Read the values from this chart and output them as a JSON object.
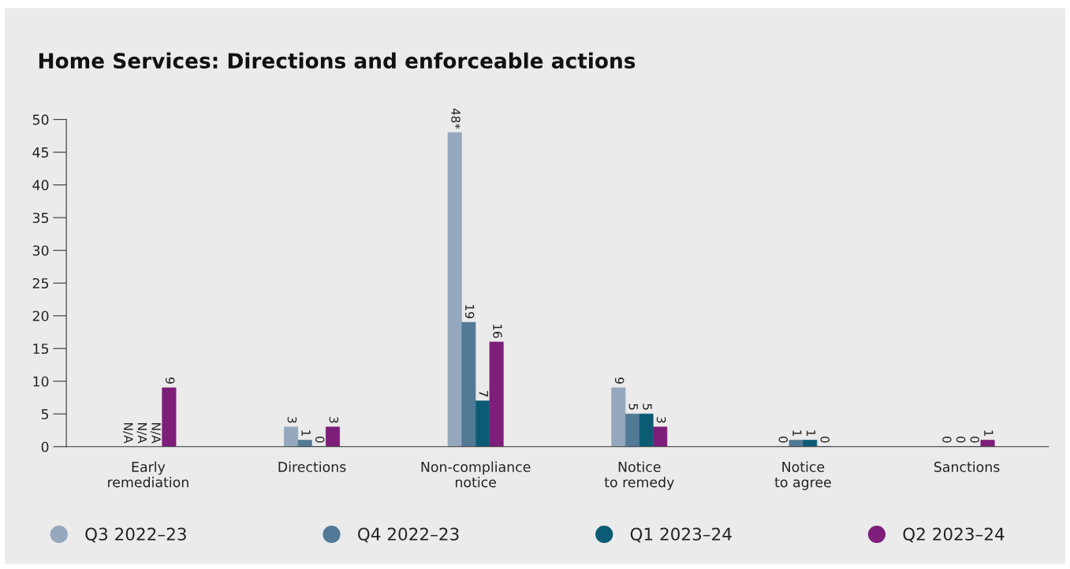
{
  "chart_data": {
    "type": "bar",
    "title": "Home Services: Directions and enforceable actions",
    "categories": [
      "Early\nremediation",
      "Directions",
      "Non-compliance\nnotice",
      "Notice\nto remedy",
      "Notice\nto agree",
      "Sanctions"
    ],
    "series": [
      {
        "name": "Q3 2022–23",
        "color": "#95a8bd",
        "values": [
          null,
          3,
          48,
          9,
          0,
          0
        ],
        "value_labels": [
          "N/A",
          "3",
          "48*",
          "9",
          "0",
          "0"
        ]
      },
      {
        "name": "Q4 2022–23",
        "color": "#527a96",
        "values": [
          null,
          1,
          19,
          5,
          1,
          0
        ],
        "value_labels": [
          "N/A",
          "1",
          "19",
          "5",
          "1",
          "0"
        ]
      },
      {
        "name": "Q1 2023–24",
        "color": "#0b5b74",
        "values": [
          null,
          0,
          7,
          5,
          1,
          0
        ],
        "value_labels": [
          "N/A",
          "0",
          "7",
          "5",
          "1",
          "0"
        ]
      },
      {
        "name": "Q2 2023–24",
        "color": "#7d1e7a",
        "values": [
          9,
          3,
          16,
          3,
          0,
          1
        ],
        "value_labels": [
          "9",
          "3",
          "16",
          "3",
          "0",
          "1"
        ]
      }
    ],
    "ylim": [
      0,
      50
    ],
    "yticks": [
      0,
      5,
      10,
      15,
      20,
      25,
      30,
      35,
      40,
      45,
      50
    ],
    "grid": false,
    "legend": "bottom"
  }
}
